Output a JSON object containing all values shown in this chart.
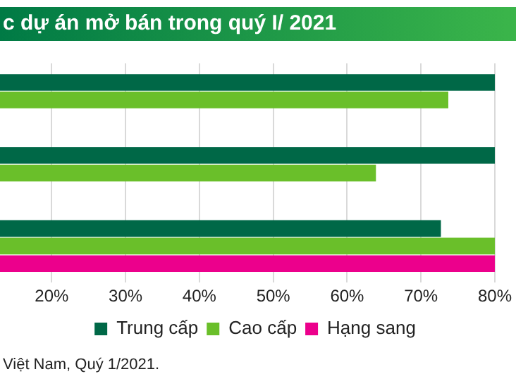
{
  "chart_data": {
    "type": "bar",
    "orientation": "horizontal",
    "title": "c dự án mở bán trong quý I/ 2021",
    "categories": [
      null,
      null,
      null
    ],
    "series": [
      {
        "name": "Trung cấp",
        "color": "#006847",
        "values": [
          80,
          80,
          72.7
        ]
      },
      {
        "name": "Cao cấp",
        "color": "#6abf2a",
        "values": [
          73.7,
          63.9,
          80
        ]
      },
      {
        "name": "Hạng sang",
        "color": "#ec008c",
        "values": [
          null,
          null,
          80
        ]
      }
    ],
    "xlim": [
      13,
      80
    ],
    "xticks": [
      {
        "value": 20,
        "label": "20%"
      },
      {
        "value": 30,
        "label": "30%"
      },
      {
        "value": 40,
        "label": "40%"
      },
      {
        "value": 50,
        "label": "50%"
      },
      {
        "value": 60,
        "label": "60%"
      },
      {
        "value": 70,
        "label": "70%"
      },
      {
        "value": 80,
        "label": "80%"
      }
    ],
    "grid": "x",
    "legend": "bottom",
    "tick_labels": "x",
    "annotations": [
      "Việt Nam, Quý 1/2021."
    ]
  }
}
